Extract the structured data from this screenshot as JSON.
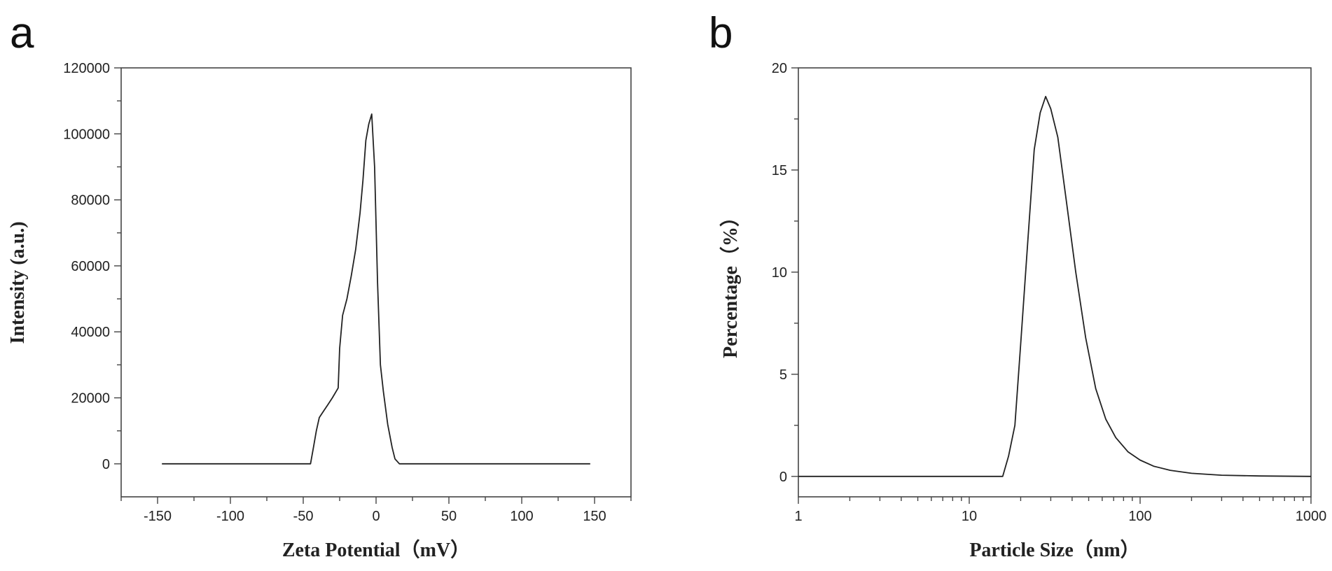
{
  "chart_data": [
    {
      "panel_label": "a",
      "type": "line",
      "xlabel": "Zeta Potential（mV）",
      "ylabel": "Intensity (a.u.)",
      "xlim": [
        -175,
        175
      ],
      "ylim": [
        -10000,
        120000
      ],
      "x_scale": "linear",
      "grid": false,
      "x_ticks": [
        -150,
        -100,
        -50,
        0,
        50,
        100,
        150
      ],
      "y_ticks": [
        0,
        20000,
        40000,
        60000,
        80000,
        100000,
        120000
      ],
      "series": [
        {
          "x": [
            -147,
            -45,
            -43,
            -41,
            -39,
            -36,
            -33,
            -30,
            -26,
            -25,
            -23,
            -20,
            -17,
            -14,
            -11,
            -9,
            -7,
            -5,
            -3,
            -1,
            1,
            3,
            5,
            8,
            11,
            13,
            16,
            147
          ],
          "y": [
            0,
            0,
            5000,
            10000,
            14000,
            16000,
            18000,
            20000,
            23000,
            35000,
            45000,
            50000,
            57000,
            65000,
            76000,
            86000,
            98000,
            103000,
            106000,
            90000,
            55000,
            30000,
            22000,
            12000,
            5000,
            1500,
            0,
            0
          ]
        }
      ]
    },
    {
      "panel_label": "b",
      "type": "line",
      "xlabel": "Particle Size（nm）",
      "ylabel": "Percentage（%）",
      "xlim": [
        1,
        1000
      ],
      "ylim": [
        -1,
        20
      ],
      "x_scale": "log",
      "grid": false,
      "x_ticks": [
        1,
        10,
        100,
        1000
      ],
      "y_ticks": [
        0,
        5,
        10,
        15,
        20
      ],
      "series": [
        {
          "x": [
            1,
            15.7,
            17,
            18.5,
            20,
            22,
            24,
            26,
            28,
            30,
            33,
            37,
            42,
            48,
            55,
            63,
            72,
            85,
            100,
            120,
            150,
            200,
            300,
            500,
            1000
          ],
          "y": [
            0,
            0,
            1.0,
            2.5,
            6.5,
            11.5,
            16.0,
            17.8,
            18.6,
            18.0,
            16.6,
            13.5,
            10.0,
            6.8,
            4.3,
            2.8,
            1.9,
            1.2,
            0.8,
            0.5,
            0.3,
            0.15,
            0.06,
            0.02,
            0
          ]
        }
      ]
    }
  ]
}
